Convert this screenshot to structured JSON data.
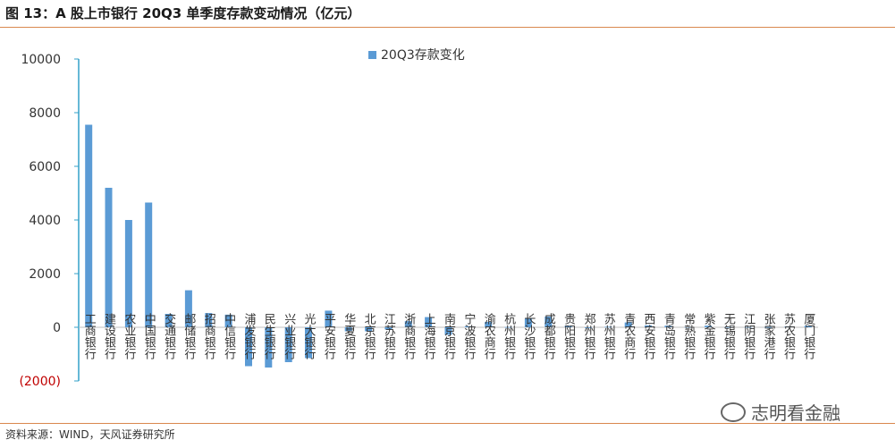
{
  "figure": {
    "title": "图 13：A 股上市银行 20Q3 单季度存款变动情况（亿元）",
    "source": "资料来源：WIND，天风证券研究所",
    "watermark": "志明看金融"
  },
  "colors": {
    "bar": "#5b9bd5",
    "rule": "#d9884e",
    "axis": "#33a0c8",
    "negative_label": "#c00000"
  },
  "chart_data": {
    "type": "bar",
    "title": "",
    "xlabel": "",
    "ylabel": "",
    "ylim": [
      -2000,
      10000
    ],
    "yticks": [
      10000,
      8000,
      6000,
      4000,
      2000,
      0,
      -2000
    ],
    "ytick_labels": [
      "10000",
      "8000",
      "6000",
      "4000",
      "2000",
      "0",
      "(2000)"
    ],
    "legend": "top-center",
    "grid": false,
    "categories": [
      "工商银行",
      "建设银行",
      "农业银行",
      "中国银行",
      "交通银行",
      "邮储银行",
      "招商银行",
      "中信银行",
      "浦发银行",
      "民生银行",
      "兴业银行",
      "光大银行",
      "平安银行",
      "华夏银行",
      "北京银行",
      "江苏银行",
      "浙商银行",
      "上海银行",
      "南京银行",
      "宁波银行",
      "渝农商行",
      "杭州银行",
      "长沙银行",
      "成都银行",
      "贵阳银行",
      "郑州银行",
      "苏州银行",
      "青农商行",
      "西安银行",
      "青岛银行",
      "常熟银行",
      "紫金银行",
      "无锡银行",
      "江阴银行",
      "张家港行",
      "苏农银行",
      "厦门银行"
    ],
    "series": [
      {
        "name": "20Q3存款变化",
        "values": [
          7550,
          5200,
          4000,
          4650,
          500,
          1380,
          530,
          470,
          -1450,
          -1500,
          -1300,
          -1150,
          620,
          -150,
          -150,
          -80,
          230,
          380,
          -280,
          40,
          200,
          10,
          320,
          400,
          60,
          -30,
          20,
          180,
          70,
          60,
          10,
          60,
          10,
          10,
          10,
          30,
          60
        ]
      }
    ]
  }
}
